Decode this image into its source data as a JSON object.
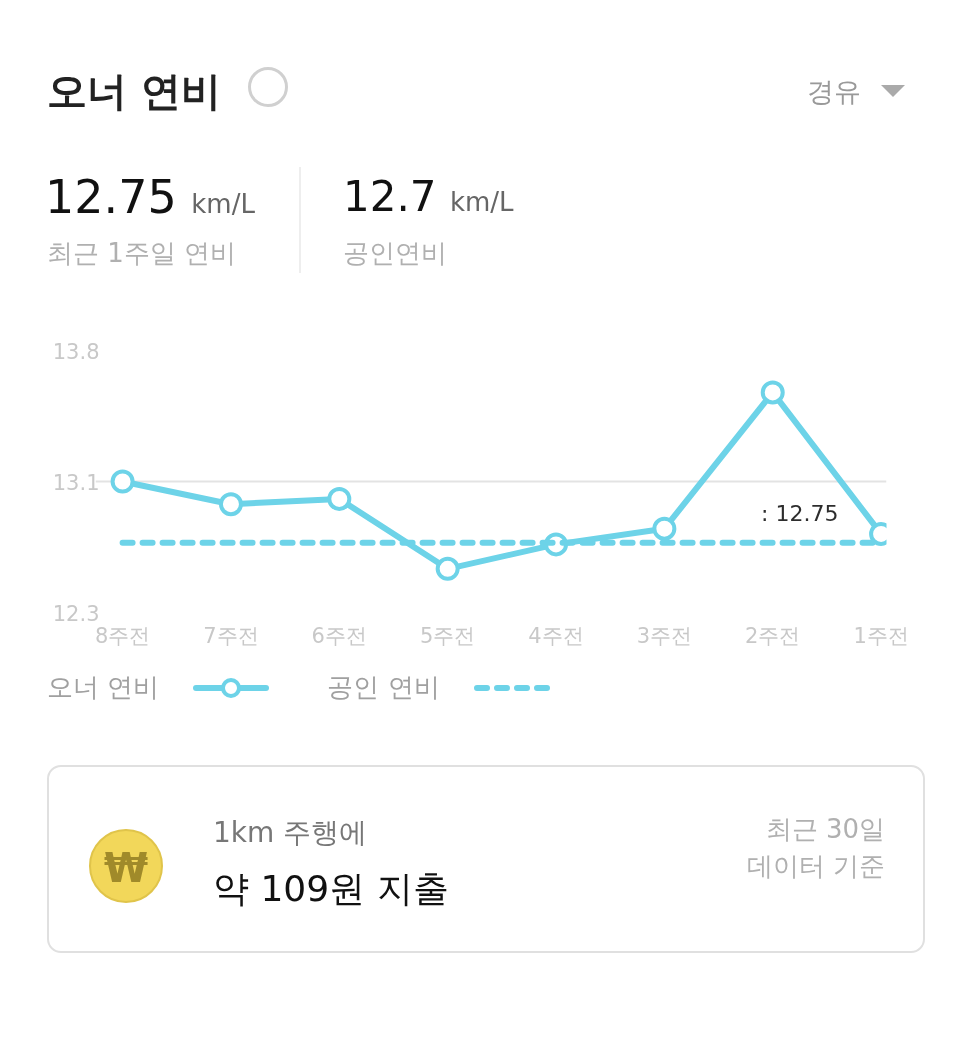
{
  "chart_data": {
    "type": "line",
    "title": "오너 연비",
    "categories": [
      "8주전",
      "7주전",
      "6주전",
      "5주전",
      "4주전",
      "3주전",
      "2주전",
      "1주전"
    ],
    "series": [
      {
        "name": "오너 연비",
        "color": "#6dd3e8",
        "values": [
          13.05,
          12.92,
          12.95,
          12.55,
          12.69,
          12.78,
          13.56,
          12.75
        ],
        "marker": "circle",
        "line_style": "solid"
      },
      {
        "name": "공인 연비",
        "color": "#6dd3e8",
        "values": [
          12.7,
          12.7,
          12.7,
          12.7,
          12.7,
          12.7,
          12.7,
          12.7
        ],
        "marker": "none",
        "line_style": "dashed"
      }
    ],
    "ylim": [
      12.3,
      13.8
    ],
    "yticks": [
      12.3,
      {
        "value": 13.05,
        "label": "13.1"
      },
      13.8
    ],
    "grid": "y",
    "legend": "bottom",
    "annotations": [
      "경유",
      "12.75 km/L",
      "최근 1주일 연비",
      "12.7 km/L",
      "공인연비",
      {
        "text": ": 12.75",
        "x": "1주전",
        "y": 12.75
      },
      "1km 주행에",
      "약 109원 지출",
      "최근 30일",
      "데이터 기준",
      "₩"
    ]
  }
}
